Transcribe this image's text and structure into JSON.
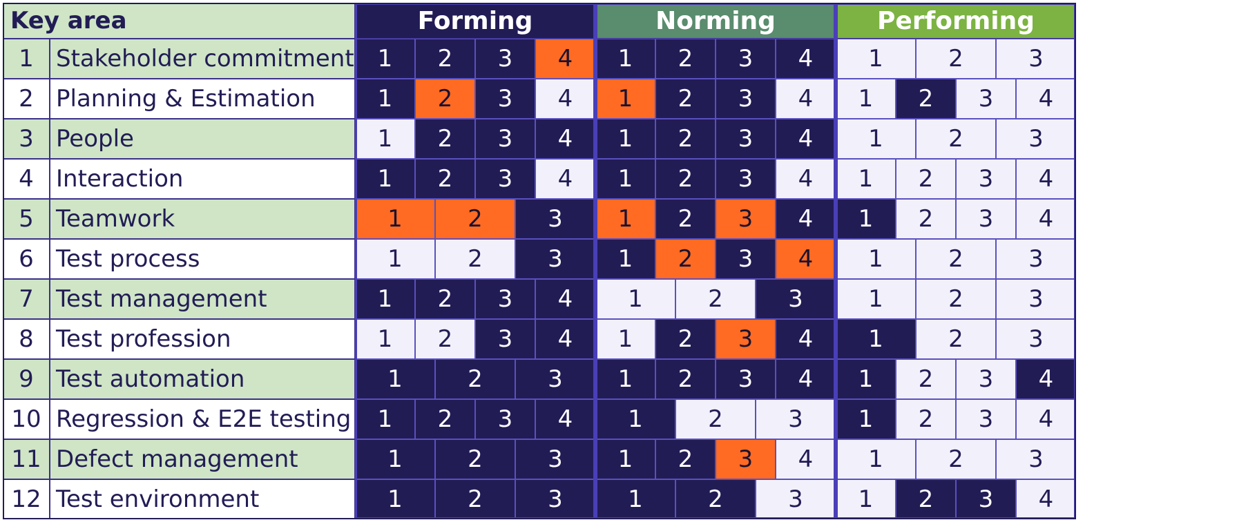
{
  "header": {
    "key_area": "Key area",
    "phases": [
      {
        "name": "Forming",
        "color": "#221c55"
      },
      {
        "name": "Norming",
        "color": "#5a8c6e"
      },
      {
        "name": "Performing",
        "color": "#7cb342"
      }
    ]
  },
  "colors": {
    "dark": "#221c55",
    "light": "#f2f1fb",
    "orange": "#ff6b22",
    "row_shade": "#cfe5c6",
    "row_plain": "#ffffff"
  },
  "rows": [
    {
      "num": "1",
      "label": "Stakeholder commitment",
      "forming": [
        [
          "1",
          "d"
        ],
        [
          "2",
          "d"
        ],
        [
          "3",
          "d"
        ],
        [
          "4",
          "o"
        ]
      ],
      "norming": [
        [
          "1",
          "d"
        ],
        [
          "2",
          "d"
        ],
        [
          "3",
          "d"
        ],
        [
          "4",
          "d"
        ]
      ],
      "performing": [
        [
          "1",
          "l"
        ],
        [
          "2",
          "l"
        ],
        [
          "3",
          "l"
        ]
      ]
    },
    {
      "num": "2",
      "label": "Planning & Estimation",
      "forming": [
        [
          "1",
          "d"
        ],
        [
          "2",
          "o"
        ],
        [
          "3",
          "d"
        ],
        [
          "4",
          "l"
        ]
      ],
      "norming": [
        [
          "1",
          "o"
        ],
        [
          "2",
          "d"
        ],
        [
          "3",
          "d"
        ],
        [
          "4",
          "l"
        ]
      ],
      "performing": [
        [
          "1",
          "l"
        ],
        [
          "2",
          "d"
        ],
        [
          "3",
          "l"
        ],
        [
          "4",
          "l"
        ]
      ]
    },
    {
      "num": "3",
      "label": "People",
      "forming": [
        [
          "1",
          "l"
        ],
        [
          "2",
          "d"
        ],
        [
          "3",
          "d"
        ],
        [
          "4",
          "d"
        ]
      ],
      "norming": [
        [
          "1",
          "d"
        ],
        [
          "2",
          "d"
        ],
        [
          "3",
          "d"
        ],
        [
          "4",
          "d"
        ]
      ],
      "performing": [
        [
          "1",
          "l"
        ],
        [
          "2",
          "l"
        ],
        [
          "3",
          "l"
        ]
      ]
    },
    {
      "num": "4",
      "label": "Interaction",
      "forming": [
        [
          "1",
          "d"
        ],
        [
          "2",
          "d"
        ],
        [
          "3",
          "d"
        ],
        [
          "4",
          "l"
        ]
      ],
      "norming": [
        [
          "1",
          "d"
        ],
        [
          "2",
          "d"
        ],
        [
          "3",
          "d"
        ],
        [
          "4",
          "l"
        ]
      ],
      "performing": [
        [
          "1",
          "l"
        ],
        [
          "2",
          "l"
        ],
        [
          "3",
          "l"
        ],
        [
          "4",
          "l"
        ]
      ]
    },
    {
      "num": "5",
      "label": "Teamwork",
      "forming": [
        [
          "1",
          "o"
        ],
        [
          "2",
          "o"
        ],
        [
          "3",
          "d"
        ]
      ],
      "norming": [
        [
          "1",
          "o"
        ],
        [
          "2",
          "d"
        ],
        [
          "3",
          "o"
        ],
        [
          "4",
          "d"
        ]
      ],
      "performing": [
        [
          "1",
          "d"
        ],
        [
          "2",
          "l"
        ],
        [
          "3",
          "l"
        ],
        [
          "4",
          "l"
        ]
      ]
    },
    {
      "num": "6",
      "label": "Test process",
      "forming": [
        [
          "1",
          "l"
        ],
        [
          "2",
          "l"
        ],
        [
          "3",
          "d"
        ]
      ],
      "norming": [
        [
          "1",
          "d"
        ],
        [
          "2",
          "o"
        ],
        [
          "3",
          "d"
        ],
        [
          "4",
          "o"
        ]
      ],
      "performing": [
        [
          "1",
          "l"
        ],
        [
          "2",
          "l"
        ],
        [
          "3",
          "l"
        ]
      ]
    },
    {
      "num": "7",
      "label": "Test management",
      "forming": [
        [
          "1",
          "d"
        ],
        [
          "2",
          "d"
        ],
        [
          "3",
          "d"
        ],
        [
          "4",
          "d"
        ]
      ],
      "norming": [
        [
          "1",
          "l"
        ],
        [
          "2",
          "l"
        ],
        [
          "3",
          "d"
        ]
      ],
      "performing": [
        [
          "1",
          "l"
        ],
        [
          "2",
          "l"
        ],
        [
          "3",
          "l"
        ]
      ]
    },
    {
      "num": "8",
      "label": "Test profession",
      "forming": [
        [
          "1",
          "l"
        ],
        [
          "2",
          "l"
        ],
        [
          "3",
          "d"
        ],
        [
          "4",
          "d"
        ]
      ],
      "norming": [
        [
          "1",
          "l"
        ],
        [
          "2",
          "d"
        ],
        [
          "3",
          "o"
        ],
        [
          "4",
          "d"
        ]
      ],
      "performing": [
        [
          "1",
          "d"
        ],
        [
          "2",
          "l"
        ],
        [
          "3",
          "l"
        ]
      ]
    },
    {
      "num": "9",
      "label": "Test automation",
      "forming": [
        [
          "1",
          "d"
        ],
        [
          "2",
          "d"
        ],
        [
          "3",
          "d"
        ]
      ],
      "norming": [
        [
          "1",
          "d"
        ],
        [
          "2",
          "d"
        ],
        [
          "3",
          "d"
        ],
        [
          "4",
          "d"
        ]
      ],
      "performing": [
        [
          "1",
          "d"
        ],
        [
          "2",
          "l"
        ],
        [
          "3",
          "l"
        ],
        [
          "4",
          "d"
        ]
      ]
    },
    {
      "num": "10",
      "label": "Regression & E2E testing",
      "forming": [
        [
          "1",
          "d"
        ],
        [
          "2",
          "d"
        ],
        [
          "3",
          "d"
        ],
        [
          "4",
          "d"
        ]
      ],
      "norming": [
        [
          "1",
          "d"
        ],
        [
          "2",
          "l"
        ],
        [
          "3",
          "l"
        ]
      ],
      "performing": [
        [
          "1",
          "d"
        ],
        [
          "2",
          "l"
        ],
        [
          "3",
          "l"
        ],
        [
          "4",
          "l"
        ]
      ]
    },
    {
      "num": "11",
      "label": "Defect management",
      "forming": [
        [
          "1",
          "d"
        ],
        [
          "2",
          "d"
        ],
        [
          "3",
          "d"
        ]
      ],
      "norming": [
        [
          "1",
          "d"
        ],
        [
          "2",
          "d"
        ],
        [
          "3",
          "o"
        ],
        [
          "4",
          "l"
        ]
      ],
      "performing": [
        [
          "1",
          "l"
        ],
        [
          "2",
          "l"
        ],
        [
          "3",
          "l"
        ]
      ]
    },
    {
      "num": "12",
      "label": "Test environment",
      "forming": [
        [
          "1",
          "d"
        ],
        [
          "2",
          "d"
        ],
        [
          "3",
          "d"
        ]
      ],
      "norming": [
        [
          "1",
          "d"
        ],
        [
          "2",
          "d"
        ],
        [
          "3",
          "l"
        ]
      ],
      "performing": [
        [
          "1",
          "l"
        ],
        [
          "2",
          "d"
        ],
        [
          "3",
          "d"
        ],
        [
          "4",
          "l"
        ]
      ]
    }
  ]
}
